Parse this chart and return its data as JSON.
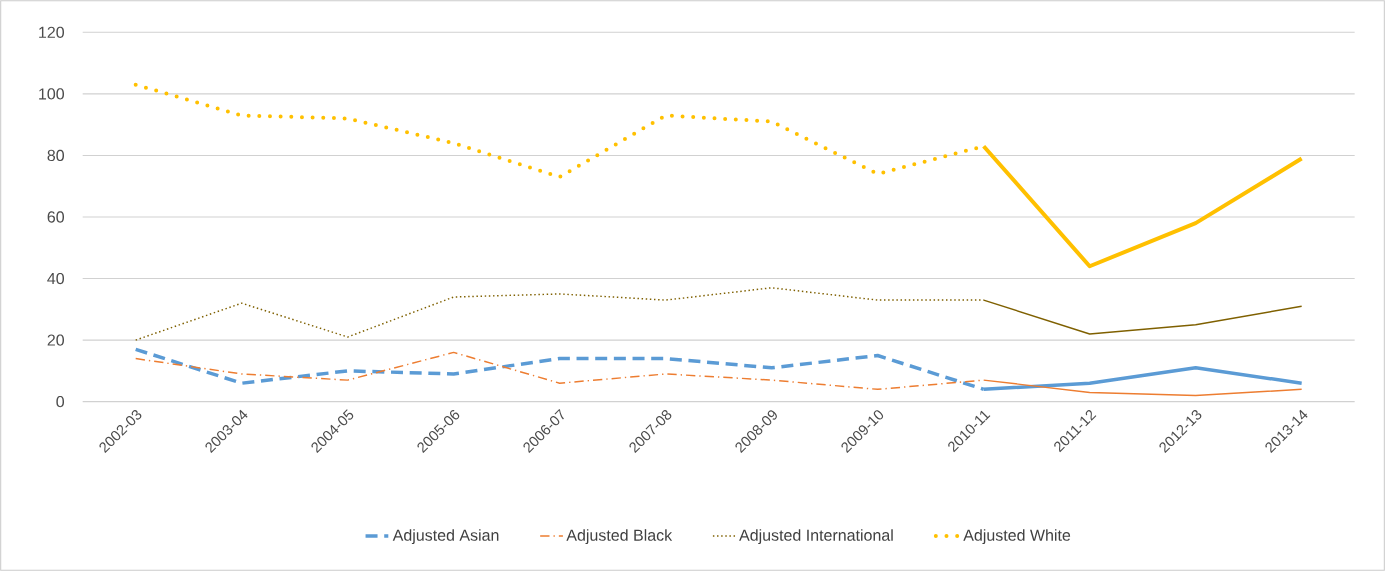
{
  "chart_data": {
    "type": "line",
    "categories": [
      "2002-03",
      "2003-04",
      "2004-05",
      "2005-06",
      "2006-07",
      "2007-08",
      "2008-09",
      "2009-10",
      "2010-11",
      "2011-12",
      "2012-13",
      "2013-14"
    ],
    "ylim": [
      0,
      120
    ],
    "yticks": [
      0,
      20,
      40,
      60,
      80,
      100,
      120
    ],
    "grid": "y",
    "legend": "bottom",
    "marker": "none",
    "series": [
      {
        "name": "Adjusted Asian",
        "color": "#5b9bd5",
        "line_style": "dashed",
        "values": [
          17,
          6,
          10,
          9,
          14,
          14,
          11,
          15,
          4,
          null,
          null,
          null
        ]
      },
      {
        "name": "Adjusted Black",
        "color": "#ed7d31",
        "line_style": "dashdot",
        "values": [
          14,
          9,
          7,
          16,
          6,
          9,
          7,
          4,
          7,
          null,
          null,
          null
        ]
      },
      {
        "name": "Adjusted International",
        "color": "#7f6000",
        "line_style": "dotted",
        "values": [
          20,
          32,
          21,
          34,
          35,
          33,
          37,
          33,
          33,
          null,
          null,
          null
        ]
      },
      {
        "name": "Adjusted White",
        "color": "#ffc000",
        "line_style": "dotted",
        "values": [
          103,
          93,
          92,
          84,
          73,
          93,
          91,
          74,
          83,
          null,
          null,
          null
        ]
      },
      {
        "color": "#5b9bd5",
        "line_style": "solid",
        "values": [
          null,
          null,
          null,
          null,
          null,
          null,
          null,
          null,
          4,
          6,
          11,
          6
        ]
      },
      {
        "color": "#ed7d31",
        "line_style": "solid",
        "values": [
          null,
          null,
          null,
          null,
          null,
          null,
          null,
          null,
          7,
          3,
          2,
          4
        ]
      },
      {
        "color": "#7f6000",
        "line_style": "solid",
        "values": [
          null,
          null,
          null,
          null,
          null,
          null,
          null,
          null,
          33,
          22,
          25,
          31
        ]
      },
      {
        "color": "#ffc000",
        "line_style": "solid",
        "values": [
          null,
          null,
          null,
          null,
          null,
          null,
          null,
          null,
          83,
          44,
          58,
          79
        ]
      }
    ]
  }
}
